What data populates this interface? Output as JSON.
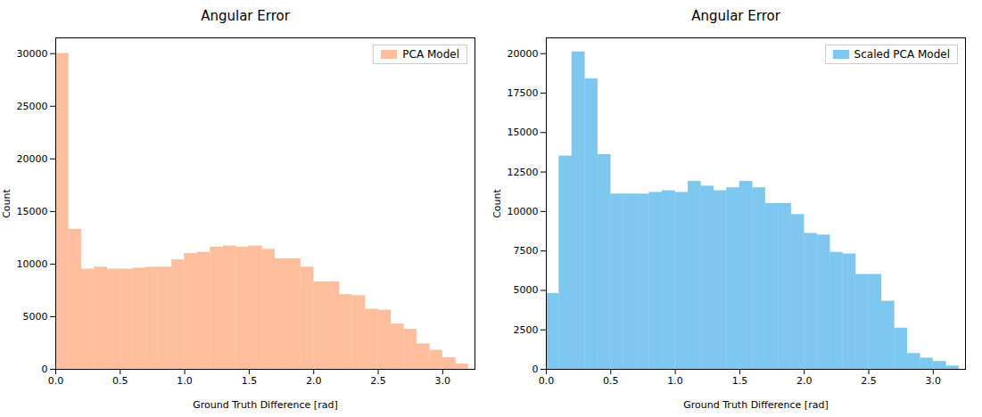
{
  "chart_data": [
    {
      "type": "histogram",
      "title": "Angular Error",
      "xlabel": "Ground Truth Difference [rad]",
      "ylabel": "Count",
      "bins": [
        0.0,
        0.1,
        0.2,
        0.3,
        0.4,
        0.5,
        0.6,
        0.7,
        0.8,
        0.9,
        1.0,
        1.1,
        1.2,
        1.3,
        1.4,
        1.5,
        1.6,
        1.7,
        1.8,
        1.9,
        2.0,
        2.1,
        2.2,
        2.3,
        2.4,
        2.5,
        2.6,
        2.7,
        2.8,
        2.9,
        3.0,
        3.1,
        3.2
      ],
      "series": [
        {
          "name": "PCA Model",
          "color": "#FFBF9E",
          "values": [
            30000,
            13300,
            9500,
            9700,
            9500,
            9500,
            9600,
            9700,
            9700,
            10400,
            11000,
            11100,
            11600,
            11700,
            11600,
            11700,
            11400,
            10500,
            10500,
            9700,
            8300,
            8300,
            7100,
            7000,
            5700,
            5600,
            4300,
            3800,
            2400,
            1800,
            1100,
            500
          ]
        }
      ],
      "xlim": [
        0.0,
        3.25
      ],
      "xticks": [
        {
          "value": 0,
          "label": "0.0"
        },
        0.5,
        {
          "value": 1,
          "label": "1.0"
        },
        1.5,
        {
          "value": 2,
          "label": "2.0"
        },
        2.5,
        {
          "value": 3,
          "label": "3.0"
        }
      ],
      "ylim": [
        0,
        31500
      ],
      "yticks": [
        0,
        5000,
        10000,
        15000,
        20000,
        25000,
        30000
      ],
      "legend": "upper right"
    },
    {
      "type": "histogram",
      "title": "Angular Error",
      "xlabel": "Ground Truth Difference [rad]",
      "ylabel": "Count",
      "bins": [
        0.0,
        0.1,
        0.2,
        0.3,
        0.4,
        0.5,
        0.6,
        0.7,
        0.8,
        0.9,
        1.0,
        1.1,
        1.2,
        1.3,
        1.4,
        1.5,
        1.6,
        1.7,
        1.8,
        1.9,
        2.0,
        2.1,
        2.2,
        2.3,
        2.4,
        2.5,
        2.6,
        2.7,
        2.8,
        2.9,
        3.0,
        3.1,
        3.2
      ],
      "series": [
        {
          "name": "Scaled PCA Model",
          "color": "#7EC8F0",
          "values": [
            4800,
            13500,
            20100,
            18400,
            13600,
            11100,
            11100,
            11100,
            11200,
            11300,
            11200,
            11900,
            11600,
            11300,
            11500,
            11900,
            11500,
            10500,
            10500,
            9800,
            8600,
            8500,
            7400,
            7300,
            6000,
            6000,
            4300,
            2600,
            1000,
            700,
            500,
            200
          ]
        }
      ],
      "xlim": [
        0.0,
        3.25
      ],
      "xticks": [
        {
          "value": 0,
          "label": "0.0"
        },
        0.5,
        {
          "value": 1,
          "label": "1.0"
        },
        1.5,
        {
          "value": 2,
          "label": "2.0"
        },
        2.5,
        {
          "value": 3,
          "label": "3.0"
        }
      ],
      "ylim": [
        0,
        21000
      ],
      "yticks": [
        0,
        2500,
        5000,
        7500,
        10000,
        12500,
        15000,
        17500,
        20000
      ],
      "legend": "upper right"
    }
  ]
}
